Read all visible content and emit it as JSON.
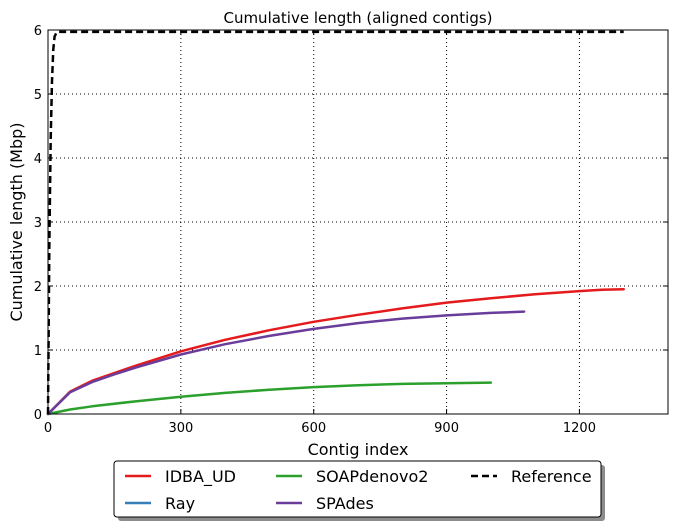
{
  "chart_data": {
    "type": "line",
    "title": "Cumulative length (aligned contigs)",
    "xlabel": "Contig index",
    "ylabel": "Cumulative length (Mbp)",
    "xlim": [
      0,
      1400
    ],
    "ylim": [
      0,
      6
    ],
    "xticks": [
      0,
      300,
      600,
      900,
      1200
    ],
    "yticks": [
      0,
      1,
      2,
      3,
      4,
      5,
      6
    ],
    "grid": true,
    "legend_position": "bottom-center",
    "series": [
      {
        "name": "IDBA_UD",
        "color": "#e41a1c",
        "style": "solid",
        "x": [
          0,
          50,
          100,
          150,
          200,
          300,
          400,
          500,
          600,
          700,
          800,
          900,
          1000,
          1100,
          1200,
          1250,
          1300
        ],
        "y": [
          0,
          0.35,
          0.52,
          0.64,
          0.76,
          0.98,
          1.16,
          1.31,
          1.44,
          1.55,
          1.65,
          1.74,
          1.81,
          1.87,
          1.92,
          1.94,
          1.95
        ]
      },
      {
        "name": "Ray",
        "color": "#377eb8",
        "style": "solid",
        "x": [],
        "y": []
      },
      {
        "name": "SOAPdenovo2",
        "color": "#2ca02c",
        "style": "solid",
        "x": [
          0,
          50,
          100,
          200,
          300,
          400,
          500,
          600,
          700,
          800,
          900,
          1000
        ],
        "y": [
          0,
          0.07,
          0.12,
          0.2,
          0.27,
          0.33,
          0.38,
          0.42,
          0.45,
          0.47,
          0.48,
          0.49
        ]
      },
      {
        "name": "SPAdes",
        "color": "#6a3d9a",
        "style": "solid",
        "x": [
          0,
          50,
          100,
          150,
          200,
          300,
          400,
          500,
          600,
          700,
          800,
          900,
          1000,
          1075
        ],
        "y": [
          0,
          0.34,
          0.5,
          0.62,
          0.73,
          0.93,
          1.09,
          1.22,
          1.33,
          1.42,
          1.49,
          1.54,
          1.58,
          1.6
        ]
      },
      {
        "name": "Reference",
        "color": "#000000",
        "style": "dashed",
        "x": [
          0,
          3,
          6,
          9,
          12,
          15,
          20,
          1300
        ],
        "y": [
          0,
          2.6,
          4.3,
          5.2,
          5.7,
          5.9,
          5.97,
          5.97
        ]
      }
    ]
  }
}
